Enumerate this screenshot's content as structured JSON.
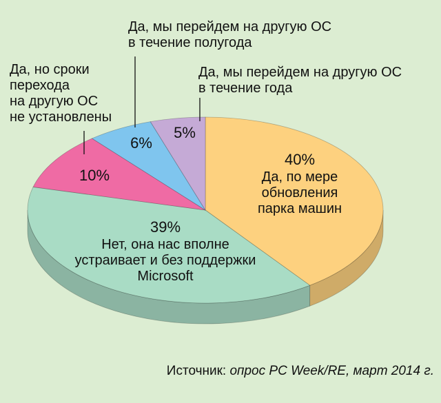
{
  "chart_data": {
    "type": "pie",
    "categories": [
      "Да, по мере\nобновления\nпарка машин",
      "Нет, она нас вполне\nустраивает и без поддержки\nMicrosoft",
      "Да, но сроки\nперехода\nна другую ОС\nне установлены",
      "Да, мы перейдем на другую ОС\nв течение полугода",
      "Да, мы перейдем на другую ОС\nв течение года"
    ],
    "values": [
      40,
      39,
      10,
      6,
      5
    ],
    "value_labels": [
      "40%",
      "39%",
      "10%",
      "6%",
      "5%"
    ],
    "colors": [
      "#fdd17f",
      "#a9dcc5",
      "#ef6ba4",
      "#7fc5ee",
      "#c5aad6"
    ],
    "source_label": "Источник:",
    "source": "опрос PC Week/RE, март 2014 г."
  }
}
